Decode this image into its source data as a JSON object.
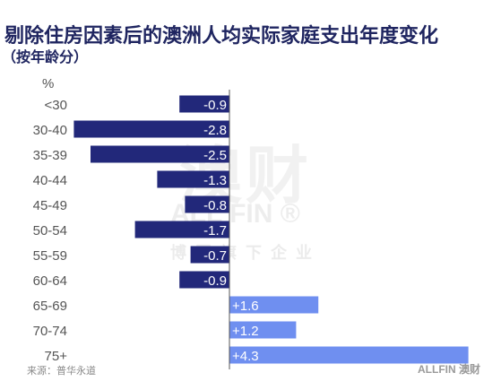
{
  "header": {
    "title": "剔除住房因素后的澳洲人均实际家庭支出年度变化",
    "subtitle": "（按年龄分）"
  },
  "watermark": {
    "big": "澳财",
    "mid": "ALL FIN ®",
    "small": "博团旗下企业"
  },
  "footer": {
    "source": "来源：普华永道",
    "logo": "ALLFIN 澳财"
  },
  "chart_data": {
    "type": "bar",
    "orientation": "horizontal",
    "unit_label": "%",
    "categories": [
      "<30",
      "30-40",
      "35-39",
      "40-44",
      "45-49",
      "50-54",
      "55-59",
      "60-64",
      "65-69",
      "70-74",
      "75+"
    ],
    "values": [
      -0.9,
      -2.8,
      -2.5,
      -1.3,
      -0.8,
      -1.7,
      -0.7,
      -0.9,
      1.6,
      1.2,
      4.3
    ],
    "labels": [
      "-0.9",
      "-2.8",
      "-2.5",
      "-1.3",
      "-0.8",
      "-1.7",
      "-0.7",
      "-0.9",
      "+1.6",
      "+1.2",
      "+4.3"
    ],
    "colors": {
      "negative": "#22287a",
      "positive": "#6f8ff0",
      "axis": "#555555",
      "category_text": "#555555"
    },
    "grid": false,
    "legend": "none"
  }
}
